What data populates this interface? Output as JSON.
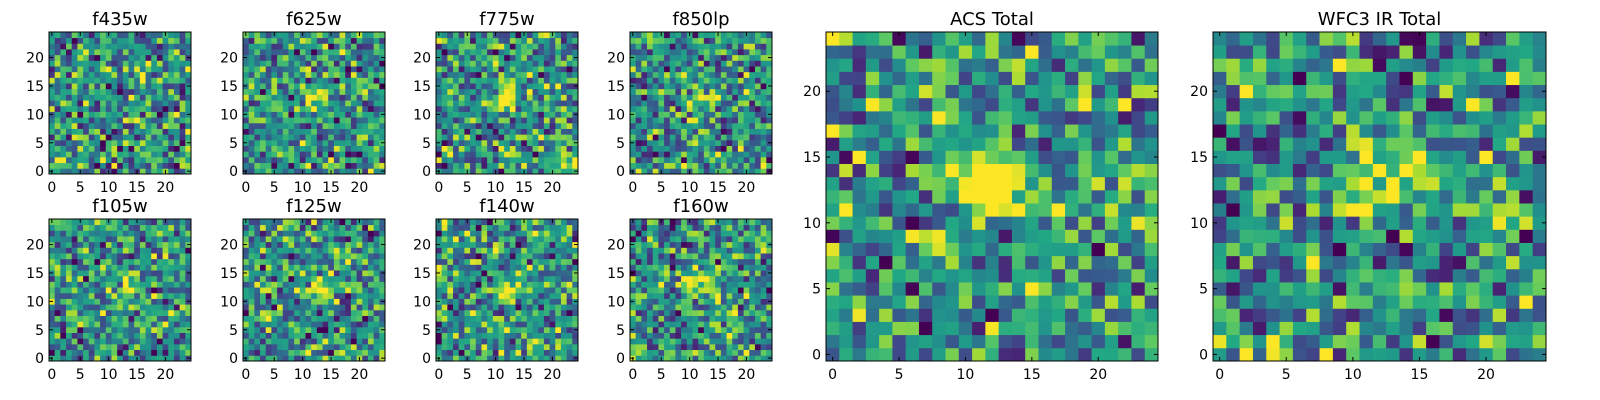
{
  "chart_data": [
    {
      "type": "heatmap",
      "title": "f435w",
      "xlim": [
        0,
        24
      ],
      "ylim": [
        0,
        24
      ],
      "xticks": [
        0,
        5,
        10,
        15,
        20
      ],
      "yticks": [
        0,
        5,
        10,
        15,
        20
      ],
      "grid": false,
      "colormap": "viridis",
      "blob": [
        0,
        0
      ],
      "peak": 0.0
    },
    {
      "type": "heatmap",
      "title": "f625w",
      "xlim": [
        0,
        24
      ],
      "ylim": [
        0,
        24
      ],
      "xticks": [
        0,
        5,
        10,
        15,
        20
      ],
      "yticks": [
        0,
        5,
        10,
        15,
        20
      ],
      "grid": false,
      "colormap": "viridis",
      "blob": [
        12,
        13
      ],
      "peak": 0.55
    },
    {
      "type": "heatmap",
      "title": "f775w",
      "xlim": [
        0,
        24
      ],
      "ylim": [
        0,
        24
      ],
      "xticks": [
        0,
        5,
        10,
        15,
        20
      ],
      "yticks": [
        0,
        5,
        10,
        15,
        20
      ],
      "grid": false,
      "colormap": "viridis",
      "blob": [
        12,
        13
      ],
      "peak": 0.5
    },
    {
      "type": "heatmap",
      "title": "f850lp",
      "xlim": [
        0,
        24
      ],
      "ylim": [
        0,
        24
      ],
      "xticks": [
        0,
        5,
        10,
        15,
        20
      ],
      "yticks": [
        0,
        5,
        10,
        15,
        20
      ],
      "grid": false,
      "colormap": "viridis",
      "blob": [
        12,
        13
      ],
      "peak": 0.3
    },
    {
      "type": "heatmap",
      "title": "f105w",
      "xlim": [
        0,
        24
      ],
      "ylim": [
        0,
        24
      ],
      "xticks": [
        0,
        5,
        10,
        15,
        20
      ],
      "yticks": [
        0,
        5,
        10,
        15,
        20
      ],
      "grid": false,
      "colormap": "viridis",
      "blob": [
        13,
        12
      ],
      "peak": 0.3
    },
    {
      "type": "heatmap",
      "title": "f125w",
      "xlim": [
        0,
        24
      ],
      "ylim": [
        0,
        24
      ],
      "xticks": [
        0,
        5,
        10,
        15,
        20
      ],
      "yticks": [
        0,
        5,
        10,
        15,
        20
      ],
      "grid": false,
      "colormap": "viridis",
      "blob": [
        13,
        12
      ],
      "peak": 0.3
    },
    {
      "type": "heatmap",
      "title": "f140w",
      "xlim": [
        0,
        24
      ],
      "ylim": [
        0,
        24
      ],
      "xticks": [
        0,
        5,
        10,
        15,
        20
      ],
      "yticks": [
        0,
        5,
        10,
        15,
        20
      ],
      "grid": false,
      "colormap": "viridis",
      "blob": [
        12,
        12
      ],
      "peak": 0.3
    },
    {
      "type": "heatmap",
      "title": "f160w",
      "xlim": [
        0,
        24
      ],
      "ylim": [
        0,
        24
      ],
      "xticks": [
        0,
        5,
        10,
        15,
        20
      ],
      "yticks": [
        0,
        5,
        10,
        15,
        20
      ],
      "grid": false,
      "colormap": "viridis",
      "blob": [
        12,
        13
      ],
      "peak": 0.45
    },
    {
      "type": "heatmap",
      "title": "ACS Total",
      "xlim": [
        0,
        24
      ],
      "ylim": [
        0,
        24
      ],
      "xticks": [
        0,
        5,
        10,
        15,
        20
      ],
      "yticks": [
        0,
        5,
        10,
        15,
        20
      ],
      "grid": false,
      "colormap": "viridis",
      "blob": [
        12,
        13
      ],
      "peak": 0.65
    },
    {
      "type": "heatmap",
      "title": "WFC3 IR Total",
      "xlim": [
        0,
        24
      ],
      "ylim": [
        0,
        24
      ],
      "xticks": [
        0,
        5,
        10,
        15,
        20
      ],
      "yticks": [
        0,
        5,
        10,
        15,
        20
      ],
      "grid": false,
      "colormap": "viridis",
      "blob": [
        12,
        13
      ],
      "peak": 0.65
    }
  ]
}
